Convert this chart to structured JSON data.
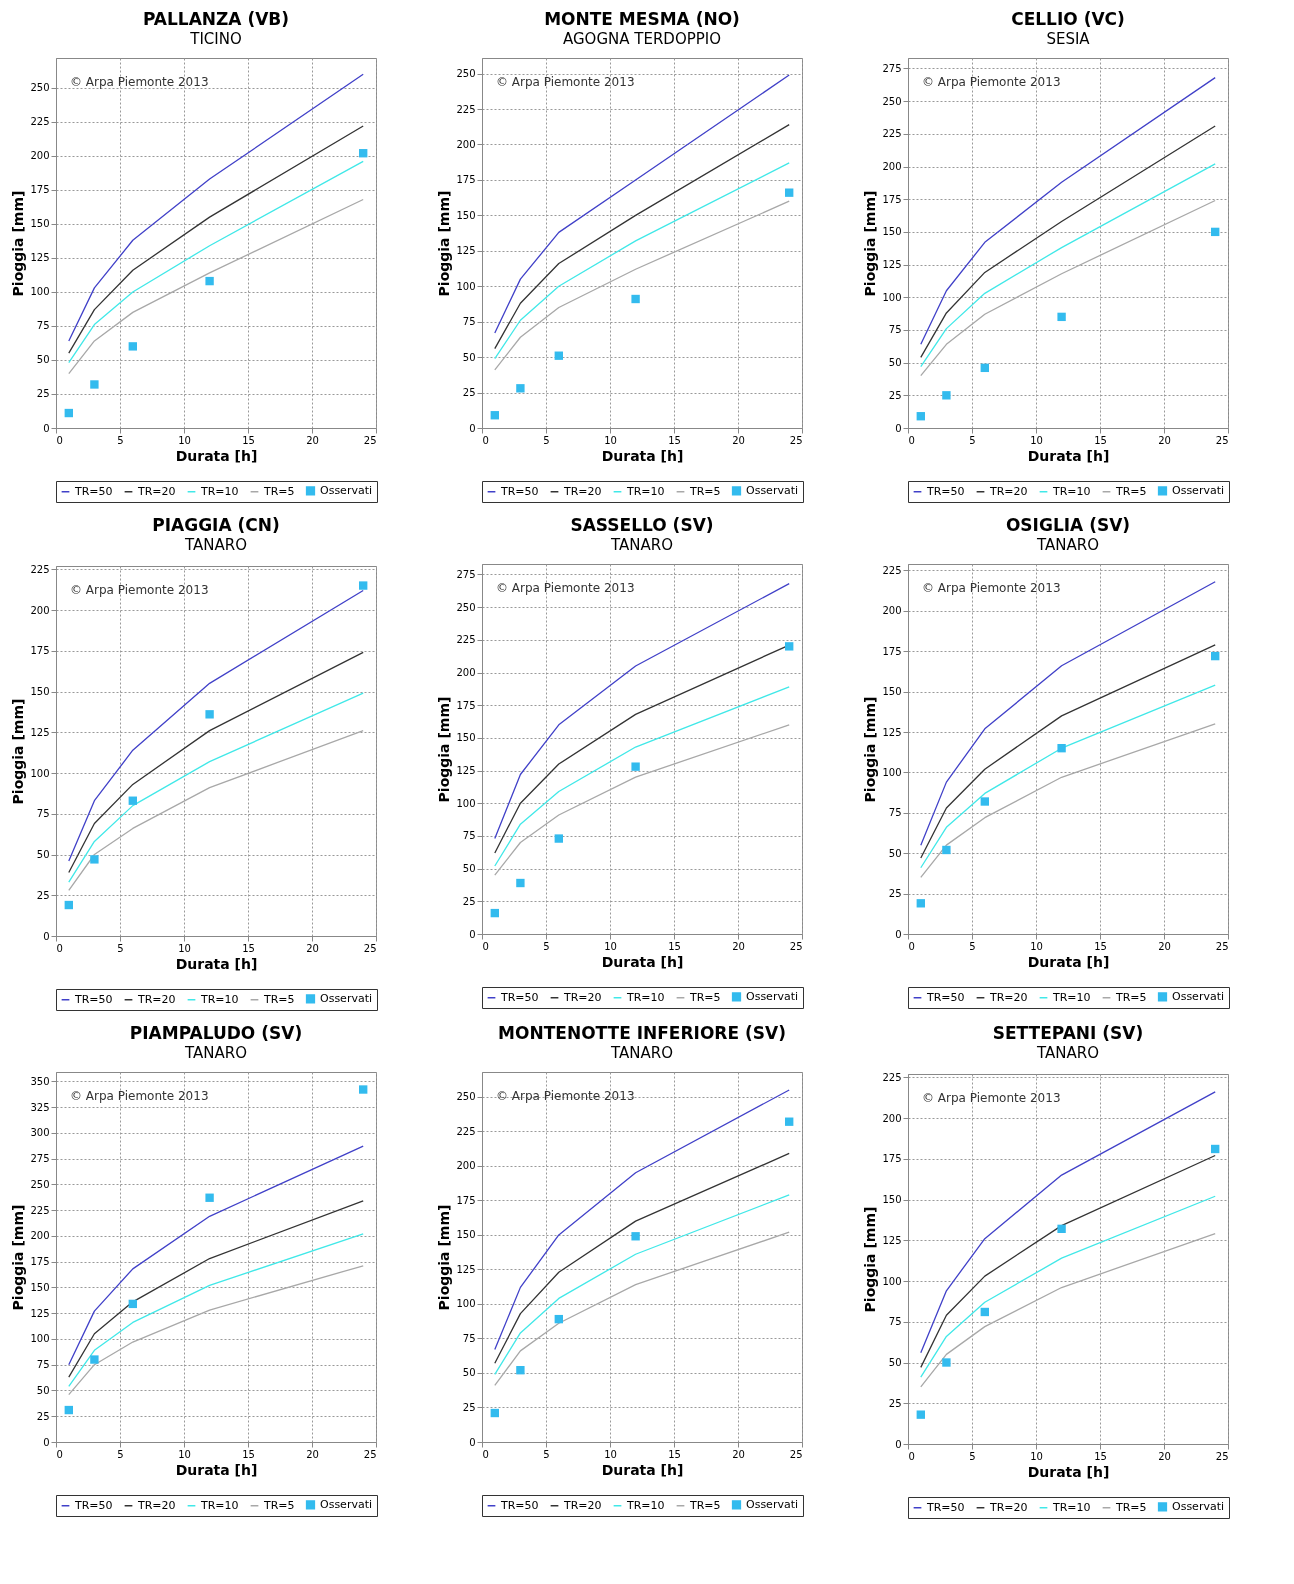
{
  "chart_data": [
    {
      "type": "line",
      "title": "PALLANZA (VB)",
      "subtitle": "TICINO",
      "xlabel": "Durata [h]",
      "ylabel": "Pioggia [mm]",
      "annotations": [
        "© Arpa Piemonte 2013"
      ],
      "x": [
        1,
        3,
        6,
        12,
        24
      ],
      "xlim": [
        0,
        25
      ],
      "xticks": [
        0,
        5,
        10,
        15,
        20,
        25
      ],
      "ylim": [
        0,
        272
      ],
      "yticks": [
        0,
        25,
        50,
        75,
        100,
        125,
        150,
        175,
        200,
        225,
        250
      ],
      "grid": true,
      "legend": "bottom",
      "line_style": "solid",
      "series": [
        {
          "name": "TR=50",
          "color": "#4040c8",
          "type": "line",
          "values": [
            64,
            103,
            138,
            183,
            260
          ]
        },
        {
          "name": "TR=20",
          "color": "#333333",
          "type": "line",
          "values": [
            55,
            87,
            116,
            155,
            222
          ]
        },
        {
          "name": "TR=10",
          "color": "#40e8e8",
          "type": "line",
          "values": [
            48,
            76,
            100,
            134,
            196
          ]
        },
        {
          "name": "TR=5",
          "color": "#a8a8a8",
          "type": "line",
          "values": [
            40,
            64,
            85,
            114,
            168
          ]
        },
        {
          "name": "Osservati",
          "color": "#33bbee",
          "type": "scatter",
          "marker": "square",
          "values": [
            11,
            32,
            60,
            108,
            202
          ]
        }
      ]
    },
    {
      "type": "line",
      "title": "MONTE MESMA (NO)",
      "subtitle": "AGOGNA TERDOPPIO",
      "xlabel": "Durata [h]",
      "ylabel": "Pioggia [mm]",
      "annotations": [
        "© Arpa Piemonte 2013"
      ],
      "x": [
        1,
        3,
        6,
        12,
        24
      ],
      "xlim": [
        0,
        25
      ],
      "xticks": [
        0,
        5,
        10,
        15,
        20,
        25
      ],
      "ylim": [
        0,
        261
      ],
      "yticks": [
        0,
        25,
        50,
        75,
        100,
        125,
        150,
        175,
        200,
        225,
        250
      ],
      "grid": true,
      "legend": "bottom",
      "line_style": "solid",
      "series": [
        {
          "name": "TR=50",
          "color": "#4040c8",
          "type": "line",
          "values": [
            67,
            105,
            138,
            175,
            249
          ]
        },
        {
          "name": "TR=20",
          "color": "#333333",
          "type": "line",
          "values": [
            56,
            88,
            116,
            150,
            214
          ]
        },
        {
          "name": "TR=10",
          "color": "#40e8e8",
          "type": "line",
          "values": [
            49,
            76,
            100,
            132,
            187
          ]
        },
        {
          "name": "TR=5",
          "color": "#a8a8a8",
          "type": "line",
          "values": [
            41,
            64,
            85,
            112,
            160
          ]
        },
        {
          "name": "Osservati",
          "color": "#33bbee",
          "type": "scatter",
          "marker": "square",
          "values": [
            9,
            28,
            51,
            91,
            166
          ]
        }
      ]
    },
    {
      "type": "line",
      "title": "CELLIO (VC)",
      "subtitle": "SESIA",
      "xlabel": "Durata [h]",
      "ylabel": "Pioggia [mm]",
      "annotations": [
        "© Arpa Piemonte 2013"
      ],
      "x": [
        1,
        3,
        6,
        12,
        24
      ],
      "xlim": [
        0,
        25
      ],
      "xticks": [
        0,
        5,
        10,
        15,
        20,
        25
      ],
      "ylim": [
        0,
        283
      ],
      "yticks": [
        0,
        25,
        50,
        75,
        100,
        125,
        150,
        175,
        200,
        225,
        250,
        275
      ],
      "grid": true,
      "legend": "bottom",
      "line_style": "solid",
      "series": [
        {
          "name": "TR=50",
          "color": "#4040c8",
          "type": "line",
          "values": [
            64,
            105,
            142,
            188,
            268
          ]
        },
        {
          "name": "TR=20",
          "color": "#333333",
          "type": "line",
          "values": [
            54,
            88,
            119,
            158,
            231
          ]
        },
        {
          "name": "TR=10",
          "color": "#40e8e8",
          "type": "line",
          "values": [
            47,
            76,
            103,
            138,
            202
          ]
        },
        {
          "name": "TR=5",
          "color": "#a8a8a8",
          "type": "line",
          "values": [
            40,
            64,
            87,
            118,
            174
          ]
        },
        {
          "name": "Osservati",
          "color": "#33bbee",
          "type": "scatter",
          "marker": "square",
          "values": [
            9,
            25,
            46,
            85,
            150
          ]
        }
      ]
    },
    {
      "type": "line",
      "title": "PIAGGIA (CN)",
      "subtitle": "TANARO",
      "xlabel": "Durata [h]",
      "ylabel": "Pioggia [mm]",
      "annotations": [
        "© Arpa Piemonte 2013"
      ],
      "x": [
        1,
        3,
        6,
        12,
        24
      ],
      "xlim": [
        0,
        25
      ],
      "xticks": [
        0,
        5,
        10,
        15,
        20,
        25
      ],
      "ylim": [
        0,
        227
      ],
      "yticks": [
        0,
        25,
        50,
        75,
        100,
        125,
        150,
        175,
        200,
        225
      ],
      "grid": true,
      "legend": "bottom",
      "line_style": "solid",
      "series": [
        {
          "name": "TR=50",
          "color": "#4040c8",
          "type": "line",
          "values": [
            46,
            83,
            114,
            155,
            212
          ]
        },
        {
          "name": "TR=20",
          "color": "#333333",
          "type": "line",
          "values": [
            39,
            69,
            93,
            126,
            174
          ]
        },
        {
          "name": "TR=10",
          "color": "#40e8e8",
          "type": "line",
          "values": [
            33,
            58,
            80,
            107,
            149
          ]
        },
        {
          "name": "TR=5",
          "color": "#a8a8a8",
          "type": "line",
          "values": [
            28,
            50,
            66,
            91,
            126
          ]
        },
        {
          "name": "Osservati",
          "color": "#33bbee",
          "type": "scatter",
          "marker": "square",
          "values": [
            19,
            47,
            83,
            136,
            215
          ]
        }
      ]
    },
    {
      "type": "line",
      "title": "SASSELLO (SV)",
      "subtitle": "TANARO",
      "xlabel": "Durata [h]",
      "ylabel": "Pioggia [mm]",
      "annotations": [
        "© Arpa Piemonte 2013"
      ],
      "x": [
        1,
        3,
        6,
        12,
        24
      ],
      "xlim": [
        0,
        25
      ],
      "xticks": [
        0,
        5,
        10,
        15,
        20,
        25
      ],
      "ylim": [
        0,
        283
      ],
      "yticks": [
        0,
        25,
        50,
        75,
        100,
        125,
        150,
        175,
        200,
        225,
        250,
        275
      ],
      "grid": true,
      "legend": "bottom",
      "line_style": "solid",
      "series": [
        {
          "name": "TR=50",
          "color": "#4040c8",
          "type": "line",
          "values": [
            73,
            122,
            160,
            205,
            268
          ]
        },
        {
          "name": "TR=20",
          "color": "#333333",
          "type": "line",
          "values": [
            62,
            100,
            130,
            168,
            221
          ]
        },
        {
          "name": "TR=10",
          "color": "#40e8e8",
          "type": "line",
          "values": [
            52,
            84,
            109,
            143,
            189
          ]
        },
        {
          "name": "TR=5",
          "color": "#a8a8a8",
          "type": "line",
          "values": [
            45,
            70,
            91,
            120,
            160
          ]
        },
        {
          "name": "Osservati",
          "color": "#33bbee",
          "type": "scatter",
          "marker": "square",
          "values": [
            16,
            39,
            73,
            128,
            220
          ]
        }
      ]
    },
    {
      "type": "line",
      "title": "OSIGLIA (SV)",
      "subtitle": "TANARO",
      "xlabel": "Durata [h]",
      "ylabel": "Pioggia [mm]",
      "annotations": [
        "© Arpa Piemonte 2013"
      ],
      "x": [
        1,
        3,
        6,
        12,
        24
      ],
      "xlim": [
        0,
        25
      ],
      "xticks": [
        0,
        5,
        10,
        15,
        20,
        25
      ],
      "ylim": [
        0,
        229
      ],
      "yticks": [
        0,
        25,
        50,
        75,
        100,
        125,
        150,
        175,
        200,
        225
      ],
      "grid": true,
      "legend": "bottom",
      "line_style": "solid",
      "series": [
        {
          "name": "TR=50",
          "color": "#4040c8",
          "type": "line",
          "values": [
            55,
            94,
            127,
            166,
            218
          ]
        },
        {
          "name": "TR=20",
          "color": "#333333",
          "type": "line",
          "values": [
            47,
            78,
            102,
            135,
            179
          ]
        },
        {
          "name": "TR=10",
          "color": "#40e8e8",
          "type": "line",
          "values": [
            41,
            66,
            87,
            115,
            154
          ]
        },
        {
          "name": "TR=5",
          "color": "#a8a8a8",
          "type": "line",
          "values": [
            35,
            55,
            72,
            97,
            130
          ]
        },
        {
          "name": "Osservati",
          "color": "#33bbee",
          "type": "scatter",
          "marker": "square",
          "values": [
            19,
            52,
            82,
            115,
            172
          ]
        }
      ]
    },
    {
      "type": "line",
      "title": "PIAMPALUDO (SV)",
      "subtitle": "TANARO",
      "xlabel": "Durata [h]",
      "ylabel": "Pioggia [mm]",
      "annotations": [
        "© Arpa Piemonte 2013"
      ],
      "x": [
        1,
        3,
        6,
        12,
        24
      ],
      "xlim": [
        0,
        25
      ],
      "xticks": [
        0,
        5,
        10,
        15,
        20,
        25
      ],
      "ylim": [
        0,
        359
      ],
      "yticks": [
        0,
        25,
        50,
        75,
        100,
        125,
        150,
        175,
        200,
        225,
        250,
        275,
        300,
        325,
        350
      ],
      "grid": true,
      "legend": "bottom",
      "line_style": "solid",
      "series": [
        {
          "name": "TR=50",
          "color": "#4040c8",
          "type": "line",
          "values": [
            75,
            127,
            168,
            219,
            287
          ]
        },
        {
          "name": "TR=20",
          "color": "#333333",
          "type": "line",
          "values": [
            63,
            105,
            136,
            178,
            234
          ]
        },
        {
          "name": "TR=10",
          "color": "#40e8e8",
          "type": "line",
          "values": [
            54,
            89,
            116,
            152,
            202
          ]
        },
        {
          "name": "TR=5",
          "color": "#a8a8a8",
          "type": "line",
          "values": [
            46,
            75,
            97,
            128,
            171
          ]
        },
        {
          "name": "Osservati",
          "color": "#33bbee",
          "type": "scatter",
          "marker": "square",
          "values": [
            31,
            80,
            134,
            237,
            342
          ]
        }
      ]
    },
    {
      "type": "line",
      "title": "MONTENOTTE INFERIORE (SV)",
      "subtitle": "TANARO",
      "xlabel": "Durata [h]",
      "ylabel": "Pioggia [mm]",
      "annotations": [
        "© Arpa Piemonte 2013"
      ],
      "x": [
        1,
        3,
        6,
        12,
        24
      ],
      "xlim": [
        0,
        25
      ],
      "xticks": [
        0,
        5,
        10,
        15,
        20,
        25
      ],
      "ylim": [
        0,
        268
      ],
      "yticks": [
        0,
        25,
        50,
        75,
        100,
        125,
        150,
        175,
        200,
        225,
        250
      ],
      "grid": true,
      "legend": "bottom",
      "line_style": "solid",
      "series": [
        {
          "name": "TR=50",
          "color": "#4040c8",
          "type": "line",
          "values": [
            67,
            112,
            150,
            195,
            255
          ]
        },
        {
          "name": "TR=20",
          "color": "#333333",
          "type": "line",
          "values": [
            57,
            93,
            123,
            160,
            209
          ]
        },
        {
          "name": "TR=10",
          "color": "#40e8e8",
          "type": "line",
          "values": [
            49,
            79,
            104,
            136,
            179
          ]
        },
        {
          "name": "TR=5",
          "color": "#a8a8a8",
          "type": "line",
          "values": [
            41,
            66,
            86,
            114,
            152
          ]
        },
        {
          "name": "Osservati",
          "color": "#33bbee",
          "type": "scatter",
          "marker": "square",
          "values": [
            21,
            52,
            89,
            149,
            232
          ]
        }
      ]
    },
    {
      "type": "line",
      "title": "SETTEPANI (SV)",
      "subtitle": "TANARO",
      "xlabel": "Durata [h]",
      "ylabel": "Pioggia [mm]",
      "annotations": [
        "© Arpa Piemonte 2013"
      ],
      "x": [
        1,
        3,
        6,
        12,
        24
      ],
      "xlim": [
        0,
        25
      ],
      "xticks": [
        0,
        5,
        10,
        15,
        20,
        25
      ],
      "ylim": [
        0,
        227
      ],
      "yticks": [
        0,
        25,
        50,
        75,
        100,
        125,
        150,
        175,
        200,
        225
      ],
      "grid": true,
      "legend": "bottom",
      "line_style": "solid",
      "series": [
        {
          "name": "TR=50",
          "color": "#4040c8",
          "type": "line",
          "values": [
            56,
            94,
            126,
            165,
            216
          ]
        },
        {
          "name": "TR=20",
          "color": "#333333",
          "type": "line",
          "values": [
            47,
            79,
            103,
            134,
            177
          ]
        },
        {
          "name": "TR=10",
          "color": "#40e8e8",
          "type": "line",
          "values": [
            41,
            66,
            87,
            114,
            152
          ]
        },
        {
          "name": "TR=5",
          "color": "#a8a8a8",
          "type": "line",
          "values": [
            35,
            55,
            72,
            96,
            129
          ]
        },
        {
          "name": "Osservati",
          "color": "#33bbee",
          "type": "scatter",
          "marker": "square",
          "values": [
            18,
            50,
            81,
            132,
            181
          ]
        }
      ]
    }
  ]
}
